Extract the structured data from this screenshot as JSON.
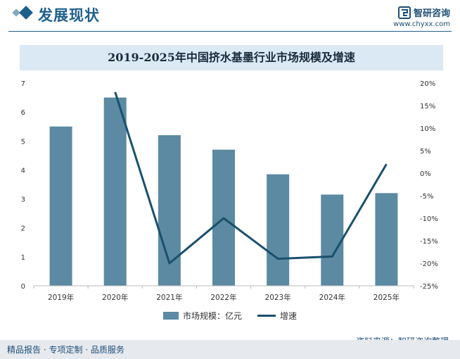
{
  "header": {
    "title": "发展现状",
    "brand_name": "智研咨询",
    "brand_url": "www.chyxx.com"
  },
  "colors": {
    "bar": "#5b8aa2",
    "line": "#19506e",
    "accent": "#1f5f8b",
    "title_band": "#dbe9f5",
    "footer_bg": "#e6e9ee"
  },
  "chart_data": {
    "type": "bar+line",
    "title": "2019-2025年中国挤水基墨行业市场规模及增速",
    "categories": [
      "2019年",
      "2020年",
      "2021年",
      "2022年",
      "2023年",
      "2024年",
      "2025年"
    ],
    "series": [
      {
        "name": "市场规模：亿元",
        "type": "bar",
        "axis": "left",
        "values": [
          5.5,
          6.5,
          5.2,
          4.7,
          3.85,
          3.15,
          3.2
        ]
      },
      {
        "name": "增速",
        "type": "line",
        "axis": "right",
        "unit": "%",
        "values": [
          null,
          18,
          -20,
          -10,
          -19,
          -18.5,
          2
        ]
      }
    ],
    "y_left": {
      "min": 0,
      "max": 7,
      "ticks": [
        "0",
        "1",
        "2",
        "3",
        "4",
        "5",
        "6",
        "7"
      ]
    },
    "y_right": {
      "min": -25,
      "max": 20,
      "ticks": [
        "-25%",
        "-20%",
        "-15%",
        "-10%",
        "-5%",
        "0%",
        "5%",
        "10%",
        "15%",
        "20%"
      ]
    },
    "grid": false,
    "legend_position": "bottom"
  },
  "legend": {
    "bar_label": "市场规模：亿元",
    "line_label": "增速"
  },
  "source": "资料来源：智研咨询整理",
  "footer": "精品报告 · 专项定制 · 品质服务"
}
